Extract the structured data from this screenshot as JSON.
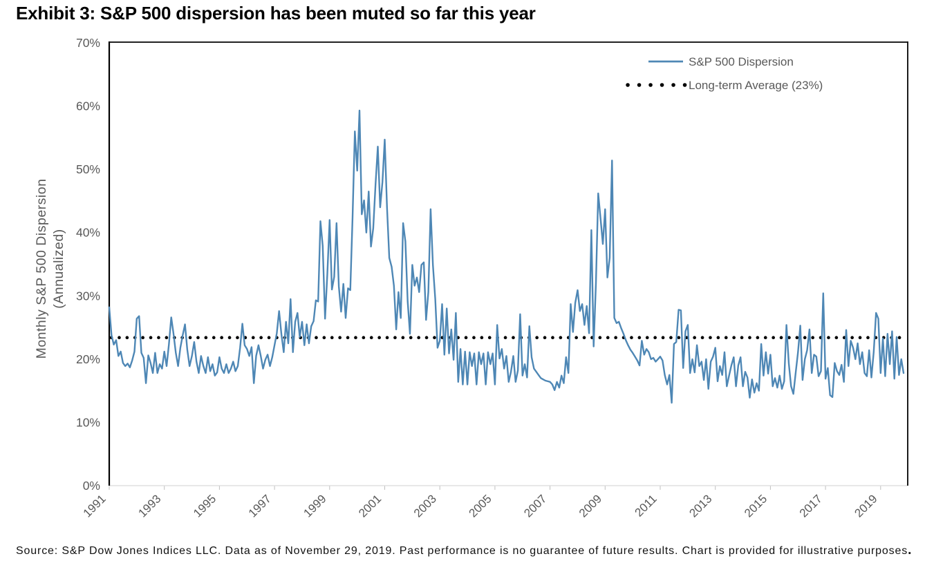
{
  "title": "Exhibit 3: S&P 500 dispersion has been muted so far this year",
  "source_note": "Source: S&P Dow Jones Indices LLC. Data as of November 29, 2019. Past performance is no guarantee of future results. Chart is provided for illustrative purposes",
  "source_period": ".",
  "chart_data": {
    "type": "line",
    "title": "Exhibit 3: S&P 500 dispersion has been muted so far this year",
    "ylabel": "Monthly S&P 500 Dispersion (Annualized)",
    "ylabel_line1": "Monthly S&P 500 Dispersion",
    "ylabel_line2": "(Annualized)",
    "ylim": [
      0,
      70
    ],
    "y_tick_labels": [
      "0%",
      "10%",
      "20%",
      "30%",
      "40%",
      "50%",
      "60%",
      "70%"
    ],
    "x_tick_labels": [
      "1991",
      "1993",
      "1995",
      "1997",
      "1999",
      "2001",
      "2003",
      "2005",
      "2007",
      "2009",
      "2011",
      "2013",
      "2015",
      "2017",
      "2019"
    ],
    "grid": false,
    "legend_position": "top-right",
    "series": [
      {
        "name": "S&P 500 Dispersion",
        "color": "#4E87B5",
        "style": "solid",
        "frequency": "monthly",
        "start": "1991-01",
        "end": "2019-11",
        "values": [
          28.2,
          23.8,
          22.3,
          23.0,
          20.5,
          21.2,
          19.4,
          18.9,
          19.3,
          18.7,
          19.8,
          21.2,
          26.4,
          26.8,
          21.0,
          20.2,
          16.2,
          20.6,
          19.4,
          17.8,
          21.0,
          17.8,
          19.2,
          18.5,
          21.2,
          18.9,
          22.3,
          26.6,
          24.0,
          21.0,
          18.9,
          21.8,
          23.8,
          25.5,
          21.5,
          18.9,
          20.5,
          22.7,
          19.6,
          17.8,
          20.5,
          18.9,
          17.8,
          20.3,
          18.1,
          19.2,
          17.4,
          17.9,
          20.3,
          18.5,
          17.8,
          19.2,
          17.8,
          18.5,
          19.6,
          18.1,
          18.9,
          21.8,
          25.6,
          22.2,
          21.6,
          20.5,
          21.9,
          16.2,
          20.5,
          22.2,
          20.5,
          18.5,
          19.9,
          20.7,
          18.9,
          20.3,
          22.2,
          24.1,
          27.6,
          23.9,
          21.1,
          25.9,
          22.5,
          29.5,
          21.1,
          25.9,
          27.3,
          23.5,
          25.9,
          22.2,
          25.5,
          22.5,
          25.2,
          26.0,
          29.3,
          29.1,
          41.8,
          37.9,
          26.4,
          33.5,
          42.0,
          31.0,
          33.0,
          41.5,
          31.5,
          27.5,
          31.9,
          26.5,
          31.2,
          30.9,
          42.5,
          56.0,
          49.8,
          59.3,
          42.9,
          45.1,
          40.0,
          46.5,
          37.8,
          40.7,
          47.6,
          53.6,
          44.0,
          48.0,
          54.7,
          44.0,
          36.0,
          34.6,
          31.6,
          24.7,
          30.6,
          26.5,
          41.5,
          38.6,
          29.1,
          24.0,
          34.9,
          31.6,
          32.9,
          30.6,
          34.9,
          35.3,
          26.2,
          30.6,
          43.7,
          34.9,
          29.5,
          21.8,
          22.9,
          28.7,
          20.7,
          28.0,
          20.9,
          24.7,
          19.9,
          27.3,
          16.4,
          21.6,
          16.0,
          21.2,
          16.0,
          21.1,
          18.9,
          20.9,
          16.0,
          21.1,
          19.2,
          20.9,
          16.0,
          21.1,
          19.2,
          20.9,
          16.0,
          25.4,
          20.1,
          21.6,
          18.5,
          20.5,
          16.4,
          18.0,
          20.5,
          16.4,
          18.2,
          27.1,
          17.4,
          19.2,
          17.1,
          25.2,
          20.3,
          18.5,
          18.0,
          17.5,
          17.0,
          16.8,
          16.6,
          16.5,
          16.4,
          16.0,
          15.1,
          16.4,
          15.5,
          17.4,
          16.2,
          20.3,
          17.8,
          28.7,
          24.3,
          28.9,
          30.9,
          27.6,
          28.7,
          25.4,
          28.4,
          24.1,
          40.4,
          22.0,
          32.0,
          46.2,
          42.2,
          38.2,
          43.7,
          32.9,
          36.0,
          51.4,
          26.5,
          25.7,
          25.9,
          24.9,
          24.0,
          23.0,
          22.2,
          21.5,
          21.0,
          20.4,
          19.8,
          19.0,
          22.9,
          20.7,
          21.6,
          21.1,
          20.0,
          20.2,
          19.6,
          20.0,
          20.4,
          19.8,
          17.5,
          16.0,
          17.5,
          13.1,
          22.4,
          22.7,
          27.8,
          27.7,
          18.6,
          24.4,
          25.4,
          17.8,
          20.0,
          17.9,
          22.2,
          18.9,
          19.6,
          16.7,
          20.0,
          15.3,
          19.6,
          20.4,
          21.8,
          16.5,
          18.9,
          17.5,
          21.1,
          15.7,
          17.4,
          19.0,
          20.3,
          15.7,
          19.0,
          20.3,
          15.7,
          18.0,
          17.1,
          13.9,
          16.8,
          14.7,
          16.2,
          15.0,
          22.4,
          17.4,
          21.1,
          17.7,
          20.7,
          15.7,
          17.0,
          15.5,
          17.4,
          15.3,
          16.5,
          25.4,
          19.3,
          15.7,
          14.5,
          17.8,
          21.1,
          25.3,
          16.7,
          20.0,
          21.4,
          24.7,
          17.8,
          20.7,
          20.4,
          17.3,
          18.1,
          30.4,
          16.9,
          18.6,
          14.3,
          14.0,
          19.4,
          18.1,
          17.5,
          19.1,
          16.4,
          24.6,
          18.9,
          22.9,
          21.8,
          20.0,
          22.5,
          19.2,
          21.1,
          17.8,
          17.3,
          21.4,
          17.1,
          21.1,
          27.3,
          26.4,
          17.8,
          23.3,
          17.3,
          24.0,
          19.2,
          24.4,
          16.9,
          23.5,
          17.5,
          20.0,
          17.8
        ]
      },
      {
        "name": "Long-term Average (23%)",
        "color": "#000000",
        "style": "dotted",
        "value": 23.4
      }
    ]
  }
}
